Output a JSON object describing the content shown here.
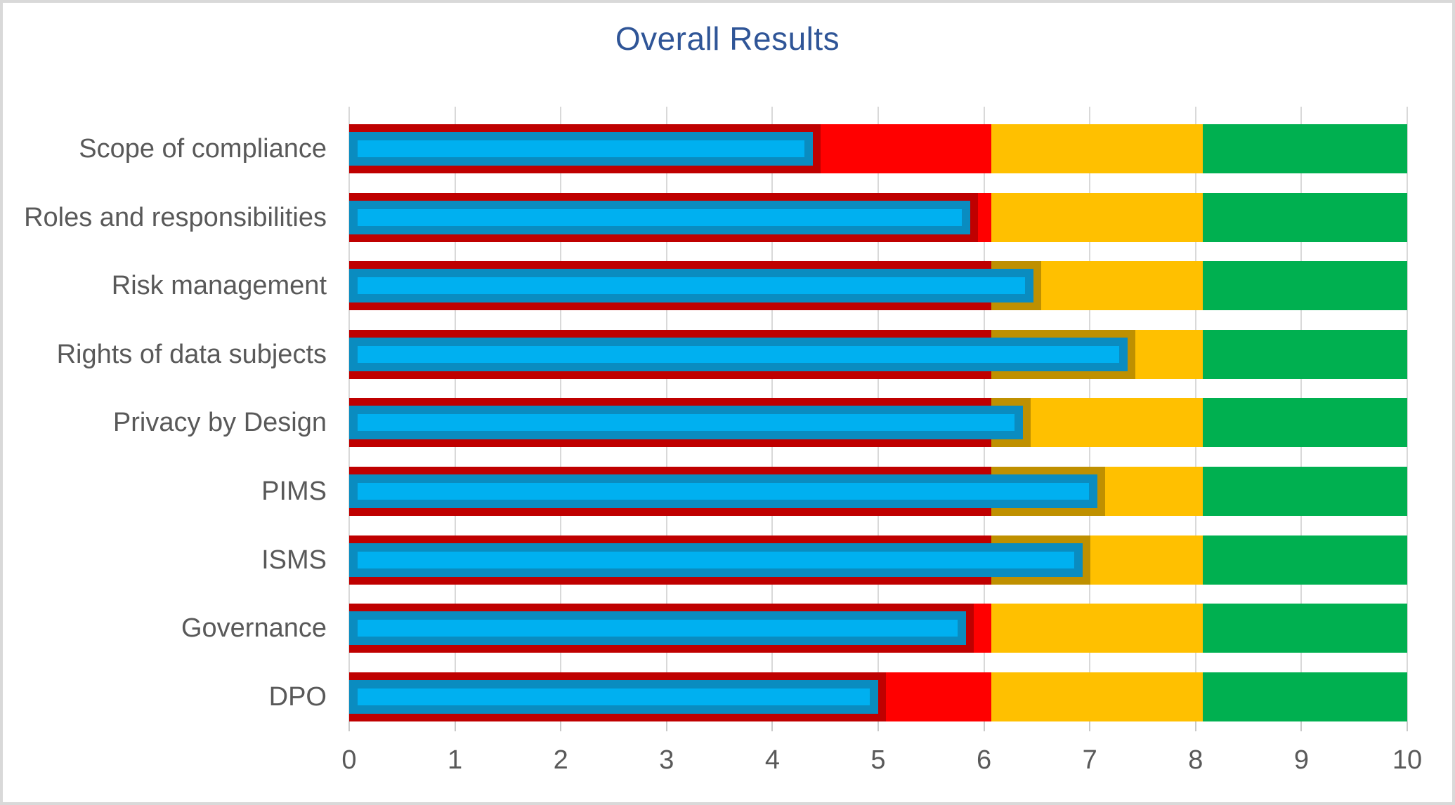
{
  "frame": {
    "border_color": "#d9d9d9",
    "background": "#ffffff"
  },
  "chart_data": {
    "type": "bar",
    "orientation": "horizontal",
    "title": "Overall Results",
    "title_color": "#2f5597",
    "categories": [
      "Scope of compliance",
      "Roles and responsibilities",
      "Risk management",
      "Rights of data subjects",
      "Privacy by Design",
      "PIMS",
      "ISMS",
      "Governance",
      "DPO"
    ],
    "values": [
      4.38,
      5.87,
      6.47,
      7.36,
      6.37,
      7.07,
      6.93,
      5.83,
      5.0
    ],
    "zones": [
      {
        "name": "red",
        "from": 0,
        "to": 6.07,
        "color": "#ff0000"
      },
      {
        "name": "yellow",
        "from": 6.07,
        "to": 8.07,
        "color": "#ffc000"
      },
      {
        "name": "green",
        "from": 8.07,
        "to": 10,
        "color": "#00b050"
      }
    ],
    "bar_style": {
      "fill": "#00b0f0",
      "border": "#0a8cc0",
      "shadow": "rgba(0,0,0,0.25)"
    },
    "x_axis": {
      "min": 0,
      "max": 10,
      "ticks": [
        0,
        1,
        2,
        3,
        4,
        5,
        6,
        7,
        8,
        9,
        10
      ],
      "tick_labels": [
        "0",
        "1",
        "2",
        "3",
        "4",
        "5",
        "6",
        "7",
        "8",
        "9",
        "10"
      ],
      "label_color": "#595959"
    },
    "grid": {
      "on": true,
      "color": "#d9d9d9"
    },
    "text_color": "#595959",
    "legend": "none"
  }
}
